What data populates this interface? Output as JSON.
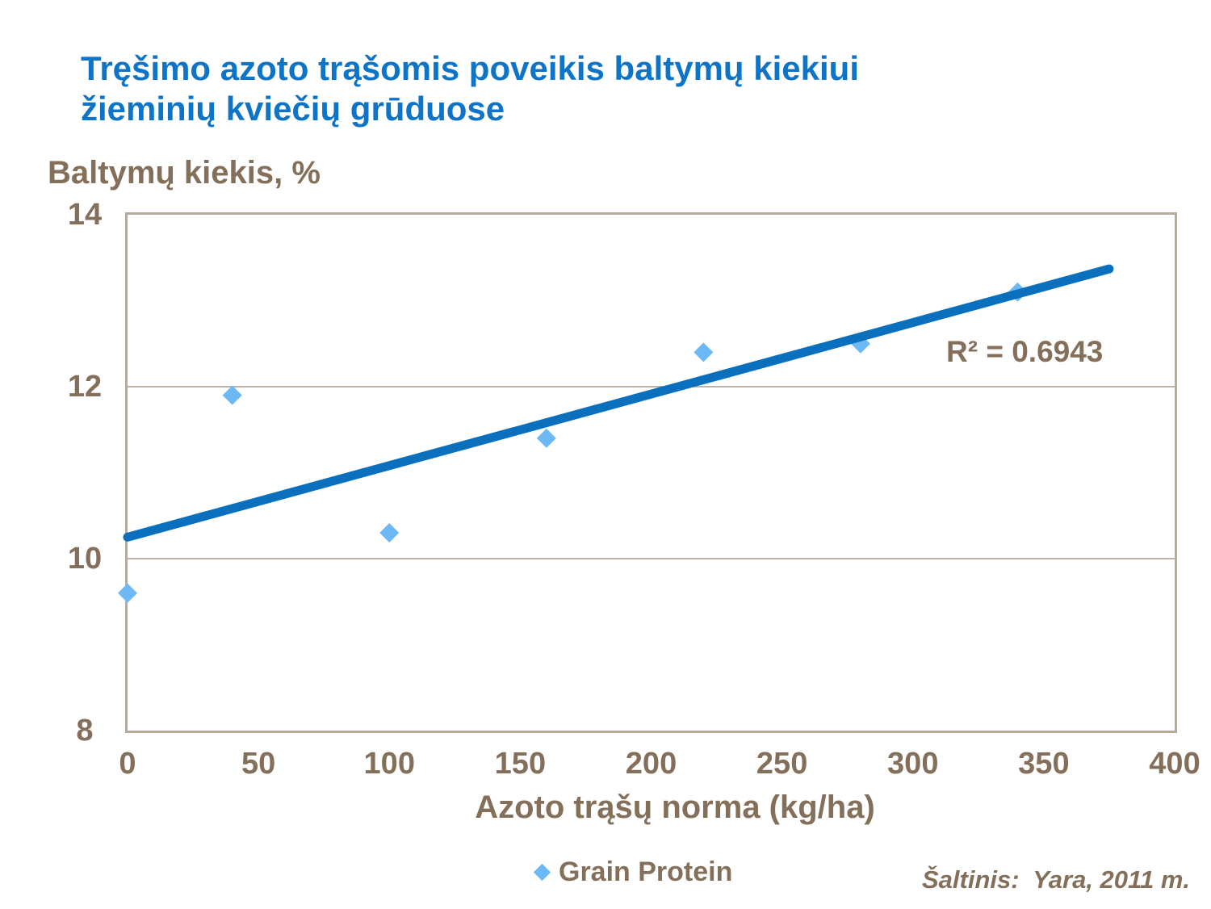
{
  "title": {
    "line1": "Tręšimo azoto trąšomis poveikis baltymų kiekiui",
    "line2": "žieminių kviečių grūduose"
  },
  "source": "Šaltinis:  Yara, 2011 m.",
  "colors": {
    "title_blue": "#0E74C8",
    "text_brown": "#84705A",
    "grid": "#A79A8B",
    "frame": "#B7AA9C",
    "marker_blue": "#6CB9F5",
    "trend_blue": "#0A70BE"
  },
  "chart_data": {
    "type": "scatter",
    "title": "Tręšimo azoto trąšomis poveikis baltymų kiekiui žieminių kviečių grūduose",
    "xlabel": "Azoto trąšų norma (kg/ha)",
    "ylabel": "Baltymų kiekis, %",
    "xlim": [
      0,
      400
    ],
    "ylim": [
      8,
      14
    ],
    "x_ticks": [
      0,
      50,
      100,
      150,
      200,
      250,
      300,
      350,
      400
    ],
    "y_ticks": [
      14,
      12,
      10,
      8
    ],
    "grid": "horizontal-only",
    "legend_position": "bottom",
    "series": [
      {
        "name": "Grain Protein",
        "marker": "diamond",
        "color": "#6CB9F5",
        "points": [
          [
            0,
            9.6
          ],
          [
            40,
            11.9
          ],
          [
            100,
            10.3
          ],
          [
            160,
            11.4
          ],
          [
            220,
            12.4
          ],
          [
            280,
            12.5
          ],
          [
            340,
            13.1
          ]
        ]
      }
    ],
    "trendline": {
      "type": "linear",
      "color": "#0A70BE",
      "x_range": [
        0,
        375
      ],
      "y_start": 10.25,
      "y_end": 13.37,
      "r2": 0.6943
    },
    "r2_label": "R² = 0.6943"
  }
}
